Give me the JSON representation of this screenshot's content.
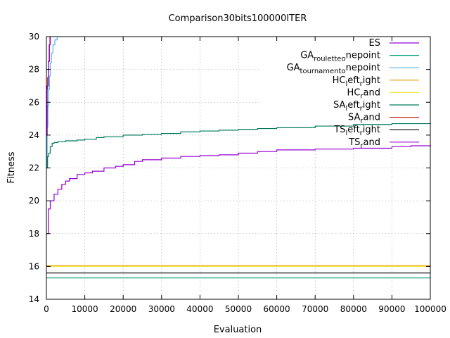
{
  "chart_data": {
    "type": "line",
    "title": "Comparison30bits100000ITER",
    "xlabel": "Evaluation",
    "ylabel": "Fitness",
    "xlim": [
      0,
      100000
    ],
    "ylim": [
      14,
      30
    ],
    "grid": true,
    "legend_position": "top-right",
    "x_ticks": [
      0,
      10000,
      20000,
      30000,
      40000,
      50000,
      60000,
      70000,
      80000,
      90000,
      100000
    ],
    "y_ticks": [
      14,
      16,
      18,
      20,
      22,
      24,
      26,
      28,
      30
    ],
    "series": [
      {
        "name": "ES",
        "legend_main": "ES",
        "legend_parts": [],
        "color": "#9400d3",
        "x": [
          0,
          500,
          1000,
          2000,
          3000,
          4000,
          5000,
          6000,
          8000,
          10000,
          12000,
          15000,
          18000,
          20000,
          23000,
          25000,
          30000,
          35000,
          40000,
          45000,
          50000,
          55000,
          60000,
          70000,
          80000,
          90000,
          95000,
          100000
        ],
        "y": [
          18.0,
          19.5,
          20.0,
          20.4,
          20.7,
          21.0,
          21.2,
          21.35,
          21.6,
          21.7,
          21.8,
          22.0,
          22.1,
          22.2,
          22.4,
          22.5,
          22.6,
          22.7,
          22.75,
          22.8,
          22.9,
          23.0,
          23.1,
          23.15,
          23.2,
          23.3,
          23.35,
          23.4
        ]
      },
      {
        "name": "GA_roulette_onepoint",
        "legend_main": "GA",
        "legend_parts": [
          [
            "sub",
            "roulette"
          ],
          [
            "sub",
            "o"
          ],
          [
            "base",
            "nepoint"
          ]
        ],
        "color": "#009e73",
        "x": [
          0,
          100000
        ],
        "y": [
          15.3,
          15.3
        ]
      },
      {
        "name": "GA_tournament_onepoint",
        "legend_main": "GA",
        "legend_parts": [
          [
            "sub",
            "tournament"
          ],
          [
            "sub",
            "o"
          ],
          [
            "base",
            "nepoint"
          ]
        ],
        "color": "#56b4e9",
        "x": [
          0,
          200,
          400,
          600,
          800,
          1000,
          1300,
          1700,
          2200,
          2800
        ],
        "y": [
          22.0,
          24.5,
          25.8,
          26.8,
          27.6,
          28.4,
          29.0,
          29.5,
          29.8,
          30.0
        ]
      },
      {
        "name": "HC_left_right",
        "legend_main": "HC",
        "legend_parts": [
          [
            "sub",
            "l"
          ],
          [
            "base",
            "eft"
          ],
          [
            "sub",
            "r"
          ],
          [
            "base",
            "ight"
          ]
        ],
        "color": "#e69f00",
        "x": [
          0,
          100000
        ],
        "y": [
          16.05,
          16.05
        ]
      },
      {
        "name": "HC_rand",
        "legend_main": "HC",
        "legend_parts": [
          [
            "sub",
            "r"
          ],
          [
            "base",
            "and"
          ]
        ],
        "color": "#f0e442",
        "x": [
          0,
          100000
        ],
        "y": [
          16.0,
          16.0
        ]
      },
      {
        "name": "SA_left_right",
        "legend_main": "SA",
        "legend_parts": [
          [
            "sub",
            "l"
          ],
          [
            "base",
            "eft"
          ],
          [
            "sub",
            "r"
          ],
          [
            "base",
            "ight"
          ]
        ],
        "color": "#007a5a",
        "x": [
          0,
          300,
          600,
          1000,
          1500,
          2000,
          3000,
          5000,
          8000,
          10000,
          13000,
          15000,
          20000,
          25000,
          30000,
          35000,
          40000,
          45000,
          50000,
          55000,
          60000,
          70000,
          80000,
          90000,
          100000
        ],
        "y": [
          22.0,
          22.7,
          22.9,
          23.3,
          23.5,
          23.55,
          23.6,
          23.65,
          23.7,
          23.75,
          23.85,
          23.9,
          24.0,
          24.05,
          24.1,
          24.2,
          24.25,
          24.3,
          24.35,
          24.4,
          24.45,
          24.55,
          24.65,
          24.7,
          24.75
        ]
      },
      {
        "name": "SA_rand",
        "legend_main": "SA",
        "legend_parts": [
          [
            "sub",
            "r"
          ],
          [
            "base",
            "and"
          ]
        ],
        "color": "#c0392b",
        "x": [
          0,
          300,
          500,
          700,
          900
        ],
        "y": [
          26.8,
          27.5,
          28.5,
          29.5,
          30.0
        ]
      },
      {
        "name": "TS_left_right",
        "legend_main": "TS",
        "legend_parts": [
          [
            "sub",
            "l"
          ],
          [
            "base",
            "eft"
          ],
          [
            "sub",
            "r"
          ],
          [
            "base",
            "ight"
          ]
        ],
        "color": "#000000",
        "x": [
          0,
          100000
        ],
        "y": [
          15.6,
          15.6
        ]
      },
      {
        "name": "TS_rand",
        "legend_main": "TS",
        "legend_parts": [
          [
            "sub",
            "r"
          ],
          [
            "base",
            "and"
          ]
        ],
        "color": "#9400d3",
        "x": [
          0,
          200,
          500,
          800,
          1000
        ],
        "y": [
          24.0,
          27.0,
          28.5,
          29.5,
          30.0
        ]
      }
    ]
  }
}
